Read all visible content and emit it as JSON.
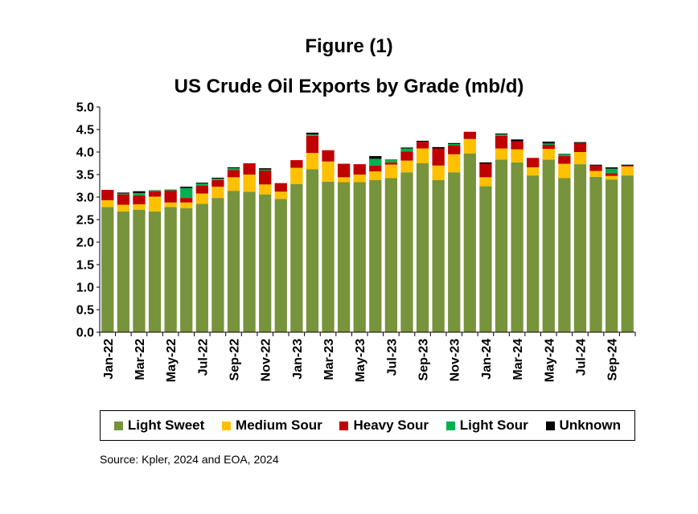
{
  "figure_label": "Figure (1)",
  "source_note": "Source: Kpler, 2024 and EOA, 2024",
  "chart_data": {
    "type": "bar",
    "stacked": true,
    "title": "US Crude Oil Exports by Grade (mb/d)",
    "xlabel": "",
    "ylabel": "",
    "ylim": [
      0,
      5.0
    ],
    "yticks": [
      0.0,
      0.5,
      1.0,
      1.5,
      2.0,
      2.5,
      3.0,
      3.5,
      4.0,
      4.5,
      5.0
    ],
    "ytick_labels": [
      "0.0",
      "0.5",
      "1.0",
      "1.5",
      "2.0",
      "2.5",
      "3.0",
      "3.5",
      "4.0",
      "4.5",
      "5.0"
    ],
    "grid": false,
    "legend_position": "bottom",
    "categories": [
      "Jan-22",
      "Feb-22",
      "Mar-22",
      "Apr-22",
      "May-22",
      "Jun-22",
      "Jul-22",
      "Aug-22",
      "Sep-22",
      "Oct-22",
      "Nov-22",
      "Dec-22",
      "Jan-23",
      "Feb-23",
      "Mar-23",
      "Apr-23",
      "May-23",
      "Jun-23",
      "Jul-23",
      "Aug-23",
      "Sep-23",
      "Oct-23",
      "Nov-23",
      "Dec-23",
      "Jan-24",
      "Feb-24",
      "Mar-24",
      "Apr-24",
      "May-24",
      "Jun-24",
      "Jul-24",
      "Aug-24",
      "Sep-24",
      "Oct-24"
    ],
    "x_tick_labels": [
      "Jan-22",
      "",
      "Mar-22",
      "",
      "May-22",
      "",
      "Jul-22",
      "",
      "Sep-22",
      "",
      "Nov-22",
      "",
      "Jan-23",
      "",
      "Mar-23",
      "",
      "May-23",
      "",
      "Jul-23",
      "",
      "Sep-23",
      "",
      "Nov-23",
      "",
      "Jan-24",
      "",
      "Mar-24",
      "",
      "May-24",
      "",
      "Jul-24",
      "",
      "Sep-24",
      ""
    ],
    "series": [
      {
        "name": "Light Sweet",
        "color": "#77933C",
        "values": [
          2.78,
          2.68,
          2.72,
          2.68,
          2.78,
          2.75,
          2.85,
          2.98,
          3.14,
          3.12,
          3.06,
          2.96,
          3.29,
          3.62,
          3.34,
          3.33,
          3.33,
          3.38,
          3.42,
          3.55,
          3.75,
          3.38,
          3.55,
          3.97,
          3.24,
          3.83,
          3.77,
          3.48,
          3.83,
          3.42,
          3.73,
          3.45,
          3.39,
          3.48
        ]
      },
      {
        "name": "Medium Sour",
        "color": "#FFC000",
        "values": [
          0.15,
          0.15,
          0.12,
          0.33,
          0.1,
          0.13,
          0.23,
          0.25,
          0.3,
          0.38,
          0.22,
          0.16,
          0.36,
          0.36,
          0.45,
          0.11,
          0.17,
          0.19,
          0.3,
          0.26,
          0.33,
          0.32,
          0.4,
          0.32,
          0.2,
          0.25,
          0.29,
          0.18,
          0.24,
          0.32,
          0.27,
          0.13,
          0.08,
          0.2
        ]
      },
      {
        "name": "Heavy Sour",
        "color": "#C00000",
        "values": [
          0.23,
          0.23,
          0.2,
          0.12,
          0.27,
          0.1,
          0.17,
          0.15,
          0.16,
          0.25,
          0.31,
          0.19,
          0.17,
          0.38,
          0.25,
          0.3,
          0.23,
          0.13,
          0.05,
          0.2,
          0.15,
          0.38,
          0.2,
          0.16,
          0.3,
          0.28,
          0.18,
          0.21,
          0.09,
          0.17,
          0.2,
          0.12,
          0.06,
          0.02
        ]
      },
      {
        "name": "Light Sour",
        "color": "#00B050",
        "values": [
          0.0,
          0.02,
          0.05,
          0.01,
          0.02,
          0.22,
          0.05,
          0.03,
          0.04,
          0.0,
          0.02,
          0.0,
          0.0,
          0.03,
          0.0,
          0.0,
          0.0,
          0.15,
          0.07,
          0.07,
          0.0,
          0.0,
          0.03,
          0.0,
          0.0,
          0.03,
          0.0,
          0.0,
          0.03,
          0.04,
          0.0,
          0.0,
          0.1,
          0.0
        ]
      },
      {
        "name": "Unknown",
        "color": "#000000",
        "values": [
          0.0,
          0.02,
          0.04,
          0.01,
          0.0,
          0.03,
          0.02,
          0.02,
          0.02,
          0.0,
          0.03,
          0.0,
          0.0,
          0.04,
          0.0,
          0.0,
          0.0,
          0.06,
          0.0,
          0.02,
          0.02,
          0.03,
          0.02,
          0.0,
          0.03,
          0.02,
          0.04,
          0.0,
          0.04,
          0.01,
          0.02,
          0.02,
          0.03,
          0.02
        ]
      }
    ]
  }
}
